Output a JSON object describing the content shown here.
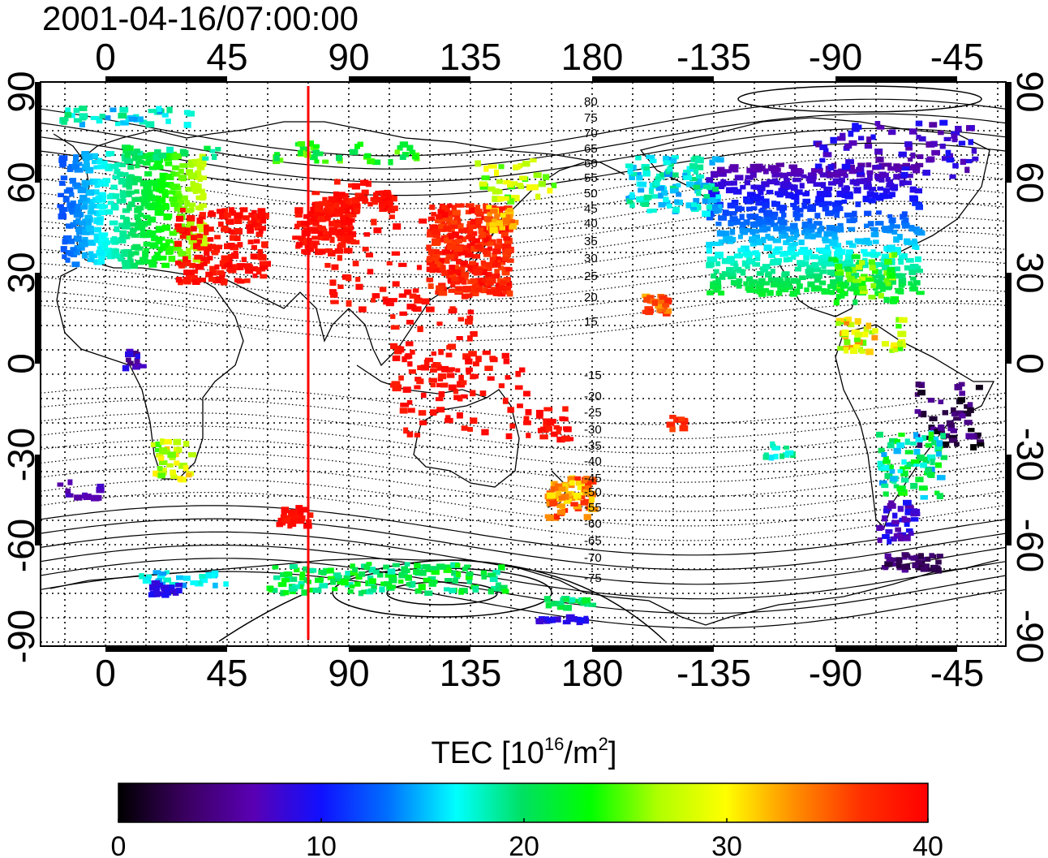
{
  "title": "2001-04-16/07:00:00",
  "map": {
    "projection": "equirectangular, centered near 110E",
    "x_tick_labels": [
      "0",
      "45",
      "90",
      "135",
      "180",
      "-135",
      "-90",
      "-45"
    ],
    "y_tick_labels_left": [
      "90",
      "60",
      "30",
      "0",
      "-30",
      "-60",
      "-90"
    ],
    "y_tick_labels_right": [
      "90",
      "60",
      "30",
      "0",
      "-30",
      "-60",
      "-90"
    ],
    "grid": true,
    "terminator_longitude_label": "75",
    "terminator_color": "#ff0000",
    "contour_labels_north": [
      "80",
      "75",
      "70",
      "65",
      "60",
      "55",
      "50",
      "45",
      "40",
      "35",
      "30",
      "25",
      "20",
      "15"
    ],
    "contour_labels_south": [
      "-15",
      "-20",
      "-25",
      "-30",
      "-35",
      "-40",
      "-45",
      "-50",
      "-55",
      "-60",
      "-65",
      "-70",
      "-75"
    ]
  },
  "colorbar": {
    "title_main": "TEC  [10",
    "title_exp": "16",
    "title_unit": "/m",
    "title_unit_exp": "2",
    "title_close": "]",
    "min": 0,
    "max": 40,
    "tick_labels": [
      "0",
      "10",
      "20",
      "30",
      "40"
    ],
    "colormap": [
      "#000000",
      "#3a0060",
      "#5a00b4",
      "#1010ff",
      "#0070ff",
      "#00ffff",
      "#00e060",
      "#00ff00",
      "#b0ff00",
      "#ffff00",
      "#ff9000",
      "#ff3000",
      "#ff0000"
    ]
  }
}
